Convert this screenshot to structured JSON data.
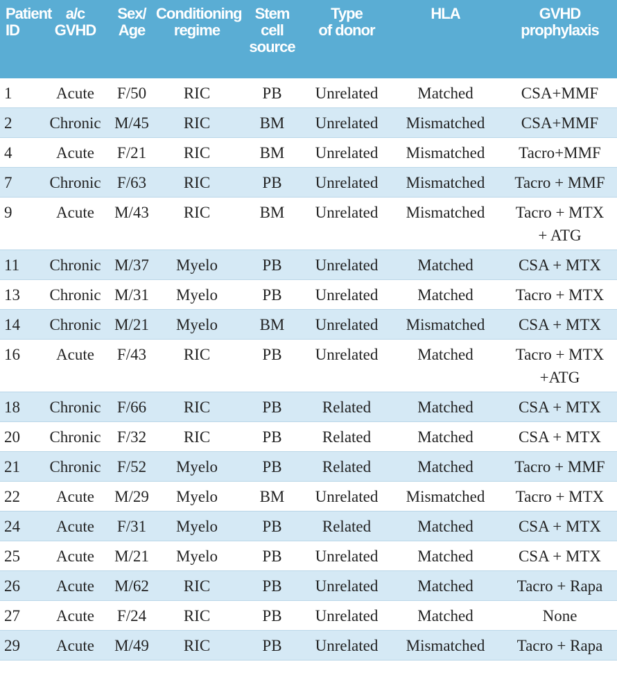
{
  "table": {
    "header": [
      [
        "Patient",
        "ID"
      ],
      [
        "a/c",
        "GVHD"
      ],
      [
        "Sex/",
        "Age"
      ],
      [
        "Conditioning",
        "regime"
      ],
      [
        "Stem",
        "cell",
        "source"
      ],
      [
        "Type",
        "of donor"
      ],
      [
        "HLA"
      ],
      [
        "GVHD",
        "prophylaxis"
      ]
    ],
    "rows": [
      [
        "1",
        "Acute",
        "F/50",
        "RIC",
        "PB",
        "Unrelated",
        "Matched",
        "CSA+MMF"
      ],
      [
        "2",
        "Chronic",
        "M/45",
        "RIC",
        "BM",
        "Unrelated",
        "Mismatched",
        "CSA+MMF"
      ],
      [
        "4",
        "Acute",
        "F/21",
        "RIC",
        "BM",
        "Unrelated",
        "Mismatched",
        "Tacro+MMF"
      ],
      [
        "7",
        "Chronic",
        "F/63",
        "RIC",
        "PB",
        "Unrelated",
        "Mismatched",
        "Tacro + MMF"
      ],
      [
        "9",
        "Acute",
        "M/43",
        "RIC",
        "BM",
        "Unrelated",
        "Mismatched",
        "Tacro + MTX + ATG"
      ],
      [
        "11",
        "Chronic",
        "M/37",
        "Myelo",
        "PB",
        "Unrelated",
        "Matched",
        "CSA + MTX"
      ],
      [
        "13",
        "Chronic",
        "M/31",
        "Myelo",
        "PB",
        "Unrelated",
        "Matched",
        "Tacro + MTX"
      ],
      [
        "14",
        "Chronic",
        "M/21",
        "Myelo",
        "BM",
        "Unrelated",
        "Mismatched",
        "CSA + MTX"
      ],
      [
        "16",
        "Acute",
        "F/43",
        "RIC",
        "PB",
        "Unrelated",
        "Matched",
        "Tacro + MTX +ATG"
      ],
      [
        "18",
        "Chronic",
        "F/66",
        "RIC",
        "PB",
        "Related",
        "Matched",
        "CSA + MTX"
      ],
      [
        "20",
        "Chronic",
        "F/32",
        "RIC",
        "PB",
        "Related",
        "Matched",
        "CSA + MTX"
      ],
      [
        "21",
        "Chronic",
        "F/52",
        "Myelo",
        "PB",
        "Related",
        "Matched",
        "Tacro + MMF"
      ],
      [
        "22",
        "Acute",
        "M/29",
        "Myelo",
        "BM",
        "Unrelated",
        "Mismatched",
        "Tacro + MTX"
      ],
      [
        "24",
        "Acute",
        "F/31",
        "Myelo",
        "PB",
        "Related",
        "Matched",
        "CSA + MTX"
      ],
      [
        "25",
        "Acute",
        "M/21",
        "Myelo",
        "PB",
        "Unrelated",
        "Matched",
        "CSA + MTX"
      ],
      [
        "26",
        "Acute",
        "M/62",
        "RIC",
        "PB",
        "Unrelated",
        "Matched",
        "Tacro + Rapa"
      ],
      [
        "27",
        "Acute",
        "F/24",
        "RIC",
        "PB",
        "Unrelated",
        "Matched",
        "None"
      ],
      [
        "29",
        "Acute",
        "M/49",
        "RIC",
        "PB",
        "Unrelated",
        "Mismatched",
        "Tacro + Rapa"
      ]
    ]
  }
}
